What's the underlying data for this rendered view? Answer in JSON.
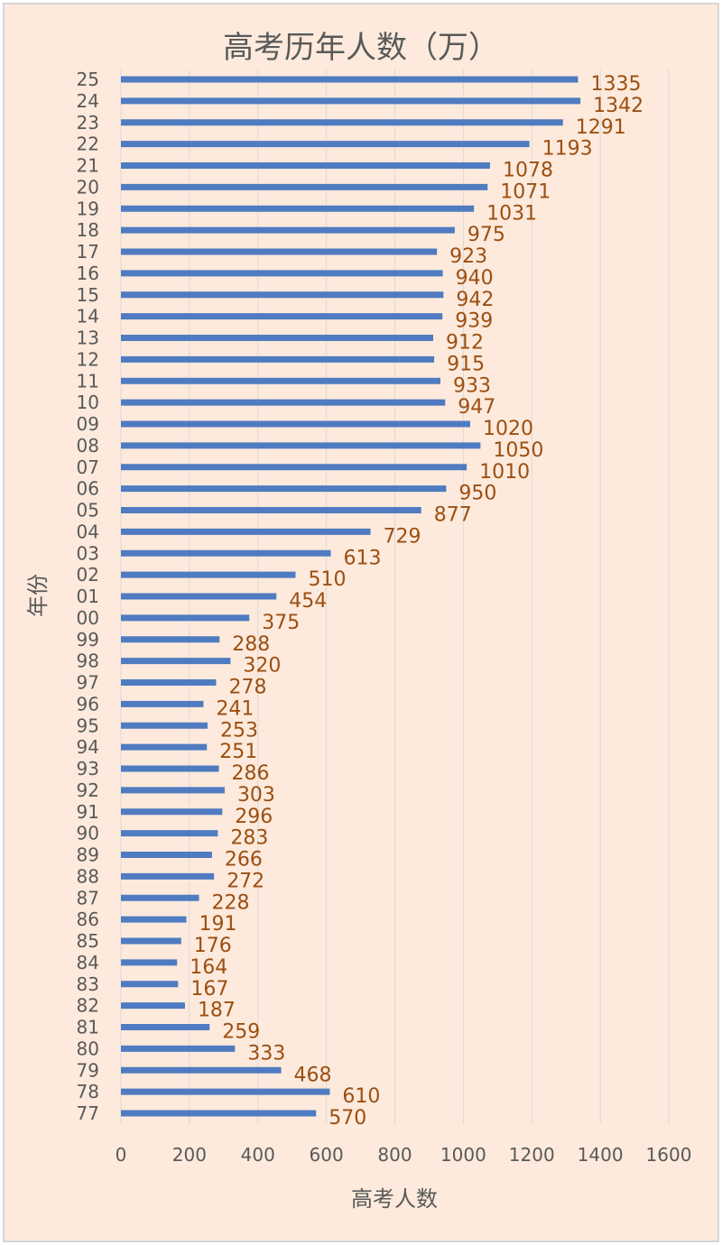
{
  "chart_data": {
    "type": "bar",
    "orientation": "horizontal",
    "title": "高考历年人数（万）",
    "xlabel": "高考人数",
    "ylabel": "年份",
    "xlim": [
      0,
      1600
    ],
    "xticks": [
      "0",
      "200",
      "400",
      "600",
      "800",
      "1000",
      "1200",
      "1400",
      "1600"
    ],
    "grid": true,
    "data_labels": true,
    "categories": [
      "25",
      "24",
      "23",
      "22",
      "21",
      "20",
      "19",
      "18",
      "17",
      "16",
      "15",
      "14",
      "13",
      "12",
      "11",
      "10",
      "09",
      "08",
      "07",
      "06",
      "05",
      "04",
      "03",
      "02",
      "01",
      "00",
      "99",
      "98",
      "97",
      "96",
      "95",
      "94",
      "93",
      "92",
      "91",
      "90",
      "89",
      "88",
      "87",
      "86",
      "85",
      "84",
      "83",
      "82",
      "81",
      "80",
      "79",
      "78",
      "77"
    ],
    "values": [
      1335,
      1342,
      1291,
      1193,
      1078,
      1071,
      1031,
      975,
      923,
      940,
      942,
      939,
      912,
      915,
      933,
      947,
      1020,
      1050,
      1010,
      950,
      877,
      729,
      613,
      510,
      454,
      375,
      288,
      320,
      278,
      241,
      253,
      251,
      286,
      303,
      296,
      283,
      266,
      272,
      228,
      191,
      176,
      164,
      167,
      187,
      259,
      333,
      468,
      610,
      570
    ],
    "colors": {
      "background": "#fdeadc",
      "bar": "#4f7bc0",
      "data_label": "#9c4f12",
      "text": "#595959",
      "grid": "#d9d9d9"
    }
  }
}
